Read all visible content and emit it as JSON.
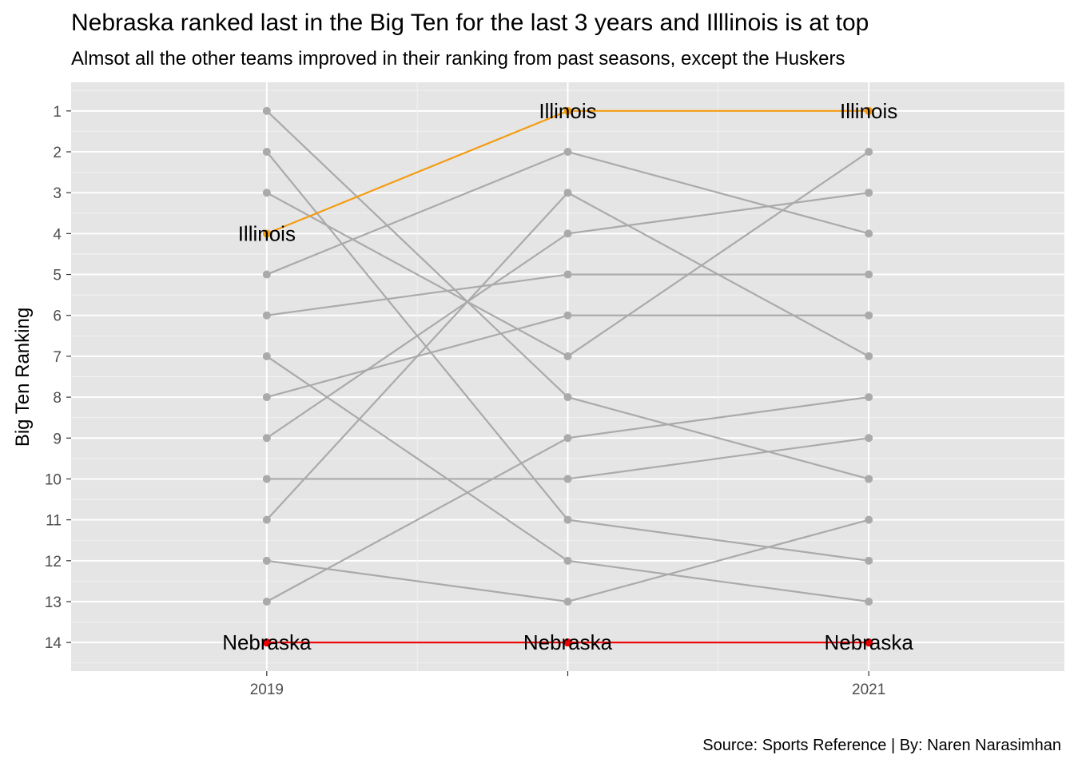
{
  "title": "Nebraska ranked last in the Big Ten for the last 3 years and Illlinois is at top",
  "subtitle": "Almsot all the other teams improved in their ranking from past seasons, except the Huskers",
  "caption": "Source: Sports Reference | By: Naren Narasimhan",
  "chart_data": {
    "type": "line",
    "ylabel": "Big Ten Ranking",
    "xlabel": "",
    "x": [
      2019,
      2020,
      2021
    ],
    "x_tick_labels": [
      "2019",
      "",
      "2021"
    ],
    "y_tick_labels": [
      "1",
      "2",
      "3",
      "4",
      "5",
      "6",
      "7",
      "8",
      "9",
      "10",
      "11",
      "12",
      "13",
      "14"
    ],
    "ylim": [
      14,
      1
    ],
    "y_reversed": true,
    "grid": true,
    "legend": "none",
    "background_color": "#e5e5e5",
    "colors": {
      "default": "#aaaaaa",
      "Illinois": "#f39c12",
      "Nebraska": "#ee0000"
    },
    "series": [
      {
        "name": "Illinois",
        "values": [
          4,
          1,
          1
        ]
      },
      {
        "name": "Nebraska",
        "values": [
          14,
          14,
          14
        ]
      },
      {
        "values": [
          1,
          8,
          10
        ]
      },
      {
        "values": [
          2,
          11,
          12
        ]
      },
      {
        "values": [
          3,
          7,
          2
        ]
      },
      {
        "values": [
          5,
          2,
          4
        ]
      },
      {
        "values": [
          6,
          5,
          5
        ]
      },
      {
        "values": [
          7,
          12,
          13
        ]
      },
      {
        "values": [
          8,
          6,
          6
        ]
      },
      {
        "values": [
          9,
          4,
          3
        ]
      },
      {
        "values": [
          10,
          10,
          9
        ]
      },
      {
        "values": [
          11,
          3,
          7
        ]
      },
      {
        "values": [
          12,
          13,
          11
        ]
      },
      {
        "values": [
          13,
          9,
          8
        ]
      }
    ],
    "point_labels": [
      {
        "series": "Illinois",
        "x": 2019,
        "y": 4,
        "text": "Illinois"
      },
      {
        "series": "Illinois",
        "x": 2020,
        "y": 1,
        "text": "Illinois"
      },
      {
        "series": "Illinois",
        "x": 2021,
        "y": 1,
        "text": "Illinois"
      },
      {
        "series": "Nebraska",
        "x": 2019,
        "y": 14,
        "text": "Nebraska"
      },
      {
        "series": "Nebraska",
        "x": 2020,
        "y": 14,
        "text": "Nebraska"
      },
      {
        "series": "Nebraska",
        "x": 2021,
        "y": 14,
        "text": "Nebraska"
      }
    ]
  }
}
